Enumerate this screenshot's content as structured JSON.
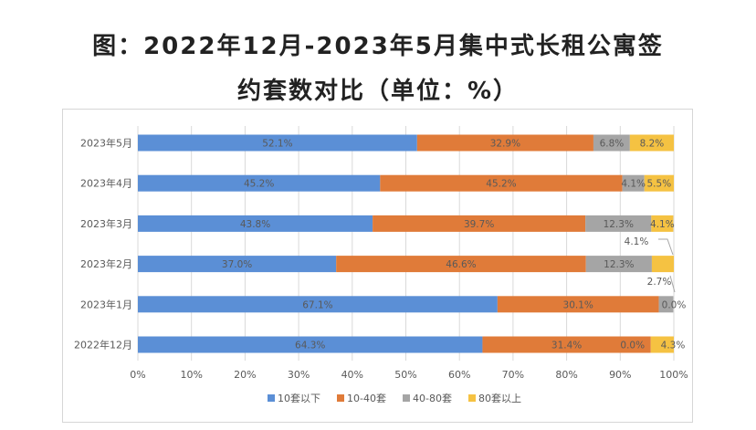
{
  "title": {
    "line1": "图：2022年12月-2023年5月集中式长租公寓签",
    "line2": "约套数对比（单位：%）"
  },
  "colors": {
    "series": [
      "#5b8fd6",
      "#e07b39",
      "#a5a5a5",
      "#f5c242"
    ],
    "grid": "#d9d9d9",
    "text": "#595959",
    "leader": "#a6a6a6"
  },
  "chart_data": {
    "type": "bar",
    "orientation": "horizontal",
    "stacked": "percent",
    "categories": [
      "2023年5月",
      "2023年4月",
      "2023年3月",
      "2023年2月",
      "2023年1月",
      "2022年12月"
    ],
    "series": [
      {
        "name": "10套以下",
        "values": [
          52.1,
          45.2,
          43.8,
          37.0,
          67.1,
          64.3
        ]
      },
      {
        "name": "10-40套",
        "values": [
          32.9,
          45.2,
          39.7,
          46.6,
          30.1,
          31.4
        ]
      },
      {
        "name": "40-80套",
        "values": [
          6.8,
          4.1,
          12.3,
          12.3,
          2.7,
          0.0
        ]
      },
      {
        "name": "80套以上",
        "values": [
          8.2,
          5.5,
          4.1,
          4.1,
          0.0,
          4.3
        ]
      }
    ],
    "data_labels": [
      [
        "52.1%",
        "32.9%",
        "6.8%",
        "8.2%"
      ],
      [
        "45.2%",
        "45.2%",
        "4.1%",
        "5.5%"
      ],
      [
        "43.8%",
        "39.7%",
        "12.3%",
        "4.1%"
      ],
      [
        "37.0%",
        "46.6%",
        "12.3%",
        "4.1%"
      ],
      [
        "67.1%",
        "30.1%",
        "2.7%",
        "0.0%"
      ],
      [
        "64.3%",
        "31.4%",
        "0.0%",
        "4.3%"
      ]
    ],
    "x_ticks": [
      "0%",
      "10%",
      "20%",
      "30%",
      "40%",
      "50%",
      "60%",
      "70%",
      "80%",
      "90%",
      "100%"
    ],
    "xlim": [
      0,
      100
    ],
    "grid": true,
    "legend_position": "bottom"
  }
}
